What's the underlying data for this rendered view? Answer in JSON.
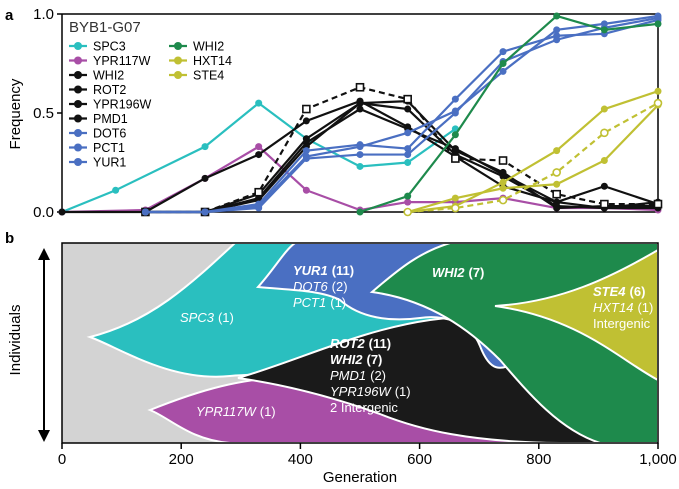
{
  "colors": {
    "SPC3": "#2abfbf",
    "YPR117W": "#a84ea6",
    "black": "#111111",
    "blue": "#4a6fc2",
    "green": "#1e8a4c",
    "olive": "#c0c033",
    "grey": "#d3d3d3"
  },
  "chart_data": [
    {
      "panel": "a",
      "type": "line",
      "title": "BYB1-G07",
      "xlabel": "",
      "ylabel": "Frequency",
      "xlim": [
        0,
        1000
      ],
      "ylim": [
        0,
        1.0
      ],
      "yticks": [
        "0.0",
        "0.5",
        "1.0"
      ],
      "legend_col1": [
        "SPC3",
        "YPR117W",
        "WHI2",
        "ROT2",
        "YPR196W",
        "PMD1",
        "DOT6",
        "PCT1",
        "YUR1"
      ],
      "legend_col2": [
        "WHI2",
        "HXT14",
        "STE4"
      ],
      "series": [
        {
          "name": "SPC3",
          "color_key": "SPC3",
          "style": "solid",
          "marker": "o",
          "x": [
            0,
            90,
            240,
            330,
            410,
            500,
            580,
            660
          ],
          "y": [
            0.0,
            0.11,
            0.33,
            0.55,
            0.37,
            0.23,
            0.25,
            0.42
          ]
        },
        {
          "name": "YPR117W",
          "color_key": "YPR117W",
          "style": "solid",
          "marker": "o",
          "x": [
            0,
            140,
            240,
            330,
            410,
            500,
            580,
            660,
            740,
            830,
            910,
            1000
          ],
          "y": [
            0.0,
            0.01,
            0.17,
            0.33,
            0.11,
            0.01,
            0.05,
            0.05,
            0.07,
            0.02,
            0.02,
            0.01
          ]
        },
        {
          "name": "WHI2",
          "color_key": "black",
          "style": "solid",
          "marker": "o",
          "x": [
            0,
            140,
            240,
            330,
            410,
            500,
            580,
            660,
            740,
            830,
            910,
            1000
          ],
          "y": [
            0.0,
            0.0,
            0.17,
            0.29,
            0.46,
            0.56,
            0.43,
            0.28,
            0.13,
            0.05,
            0.13,
            0.04
          ]
        },
        {
          "name": "ROT2",
          "color_key": "black",
          "style": "solid",
          "marker": "o",
          "x": [
            140,
            240,
            330,
            410,
            500,
            580,
            660,
            740,
            830,
            910,
            1000
          ],
          "y": [
            0.0,
            0.0,
            0.07,
            0.35,
            0.52,
            0.42,
            0.32,
            0.19,
            0.05,
            0.02,
            0.05
          ]
        },
        {
          "name": "YPR196W",
          "color_key": "black",
          "style": "solid",
          "marker": "o",
          "x": [
            140,
            240,
            330,
            410,
            500,
            580,
            660,
            740,
            830,
            910,
            1000
          ],
          "y": [
            0.0,
            0.0,
            0.06,
            0.33,
            0.55,
            0.56,
            0.31,
            0.2,
            0.02,
            0.03,
            0.03
          ]
        },
        {
          "name": "PMD1",
          "color_key": "black",
          "style": "solid",
          "marker": "o",
          "x": [
            140,
            240,
            330,
            410,
            500,
            580,
            660,
            740,
            830,
            910,
            1000
          ],
          "y": [
            0.0,
            0.0,
            0.09,
            0.37,
            0.55,
            0.52,
            0.29,
            0.18,
            0.03,
            0.02,
            0.02
          ]
        },
        {
          "name": "Intergenic",
          "color_key": "black",
          "style": "dashed",
          "marker": "s",
          "x": [
            140,
            240,
            330,
            410,
            500,
            580,
            660,
            740,
            830,
            910,
            1000
          ],
          "y": [
            0.0,
            0.0,
            0.1,
            0.52,
            0.63,
            0.57,
            0.27,
            0.26,
            0.09,
            0.04,
            0.04
          ]
        },
        {
          "name": "DOT6",
          "color_key": "blue",
          "style": "solid",
          "marker": "o",
          "x": [
            140,
            240,
            330,
            410,
            500,
            580,
            660,
            740,
            830,
            910,
            1000
          ],
          "y": [
            0.0,
            0.0,
            0.04,
            0.31,
            0.34,
            0.32,
            0.57,
            0.81,
            0.89,
            0.9,
            0.97
          ]
        },
        {
          "name": "PCT1",
          "color_key": "blue",
          "style": "solid",
          "marker": "o",
          "x": [
            140,
            240,
            330,
            410,
            500,
            580,
            660,
            740,
            830,
            910,
            1000
          ],
          "y": [
            0.0,
            0.0,
            0.02,
            0.27,
            0.29,
            0.29,
            0.5,
            0.76,
            0.87,
            0.93,
            0.98
          ]
        },
        {
          "name": "YUR1",
          "color_key": "blue",
          "style": "solid",
          "marker": "o",
          "x": [
            140,
            240,
            330,
            410,
            500,
            580,
            660,
            740,
            830,
            910,
            1000
          ],
          "y": [
            0.0,
            0.0,
            0.03,
            0.28,
            0.33,
            0.4,
            0.51,
            0.71,
            0.92,
            0.95,
            0.99
          ]
        },
        {
          "name": "WHI2",
          "color_key": "green",
          "style": "solid",
          "marker": "o",
          "x": [
            500,
            580,
            660,
            740,
            830,
            910,
            1000
          ],
          "y": [
            0.0,
            0.08,
            0.39,
            0.75,
            0.99,
            0.92,
            0.95
          ]
        },
        {
          "name": "HXT14",
          "color_key": "olive",
          "style": "solid",
          "marker": "o",
          "x": [
            580,
            660,
            740,
            830,
            910,
            1000
          ],
          "y": [
            0.0,
            0.07,
            0.12,
            0.14,
            0.26,
            0.54
          ]
        },
        {
          "name": "STE4",
          "color_key": "olive",
          "style": "solid",
          "marker": "o",
          "x": [
            580,
            660,
            740,
            830,
            910,
            1000
          ],
          "y": [
            0.0,
            0.03,
            0.15,
            0.31,
            0.52,
            0.61
          ]
        },
        {
          "name": "Intergenic",
          "color_key": "olive",
          "style": "dashed",
          "marker": "o-open",
          "x": [
            580,
            660,
            740,
            830,
            910,
            1000
          ],
          "y": [
            0.0,
            0.02,
            0.06,
            0.2,
            0.4,
            0.55
          ]
        }
      ]
    },
    {
      "panel": "b",
      "type": "area",
      "subtype": "muller",
      "xlabel": "Generation",
      "ylabel": "Individuals",
      "xlim": [
        0,
        1000
      ],
      "xticks": [
        "0",
        "200",
        "400",
        "600",
        "800",
        "1,000"
      ],
      "clones": [
        {
          "name": "SPC3",
          "count": "(1)",
          "color_key": "SPC3",
          "emerges_at": 50
        },
        {
          "name": "YPR117W",
          "count": "(1)",
          "color_key": "YPR117W",
          "emerges_at": 150
        },
        {
          "name": "YUR1 (11), DOT6 (2), PCT1 (1)",
          "color_key": "blue",
          "emerges_at": 320
        },
        {
          "name": "ROT2 (11), WHI2 (7), PMD1 (2), YPR196W (1), 2 Intergenic",
          "color_key": "black",
          "emerges_at": 280
        },
        {
          "name": "WHI2 (7)",
          "color_key": "green",
          "emerges_at": 530
        },
        {
          "name": "STE4 (6), HXT14 (1), Intergenic",
          "color_key": "olive",
          "emerges_at": 730
        }
      ],
      "labels": {
        "spc3_name": "SPC3",
        "spc3_count": "(1)",
        "ypr117w_name": "YPR117W",
        "ypr117w_count": "(1)",
        "yur1_name": "YUR1",
        "yur1_count": "(11)",
        "dot6_name": "DOT6",
        "dot6_count": "(2)",
        "pct1_name": "PCT1",
        "pct1_count": "(1)",
        "rot2_name": "ROT2",
        "rot2_count": "(11)",
        "whi2b_name": "WHI2",
        "whi2b_count": "(7)",
        "pmd1_name": "PMD1",
        "pmd1_count": "(2)",
        "ypr196w_name": "YPR196W",
        "ypr196w_count": "(1)",
        "intergenic2": "2 Intergenic",
        "whi2g_name": "WHI2",
        "whi2g_count": "(7)",
        "ste4_name": "STE4",
        "ste4_count": "(6)",
        "hxt14_name": "HXT14",
        "hxt14_count": "(1)",
        "intergenic_olive": "Intergenic"
      }
    }
  ],
  "panel_labels": {
    "a": "a",
    "b": "b"
  }
}
